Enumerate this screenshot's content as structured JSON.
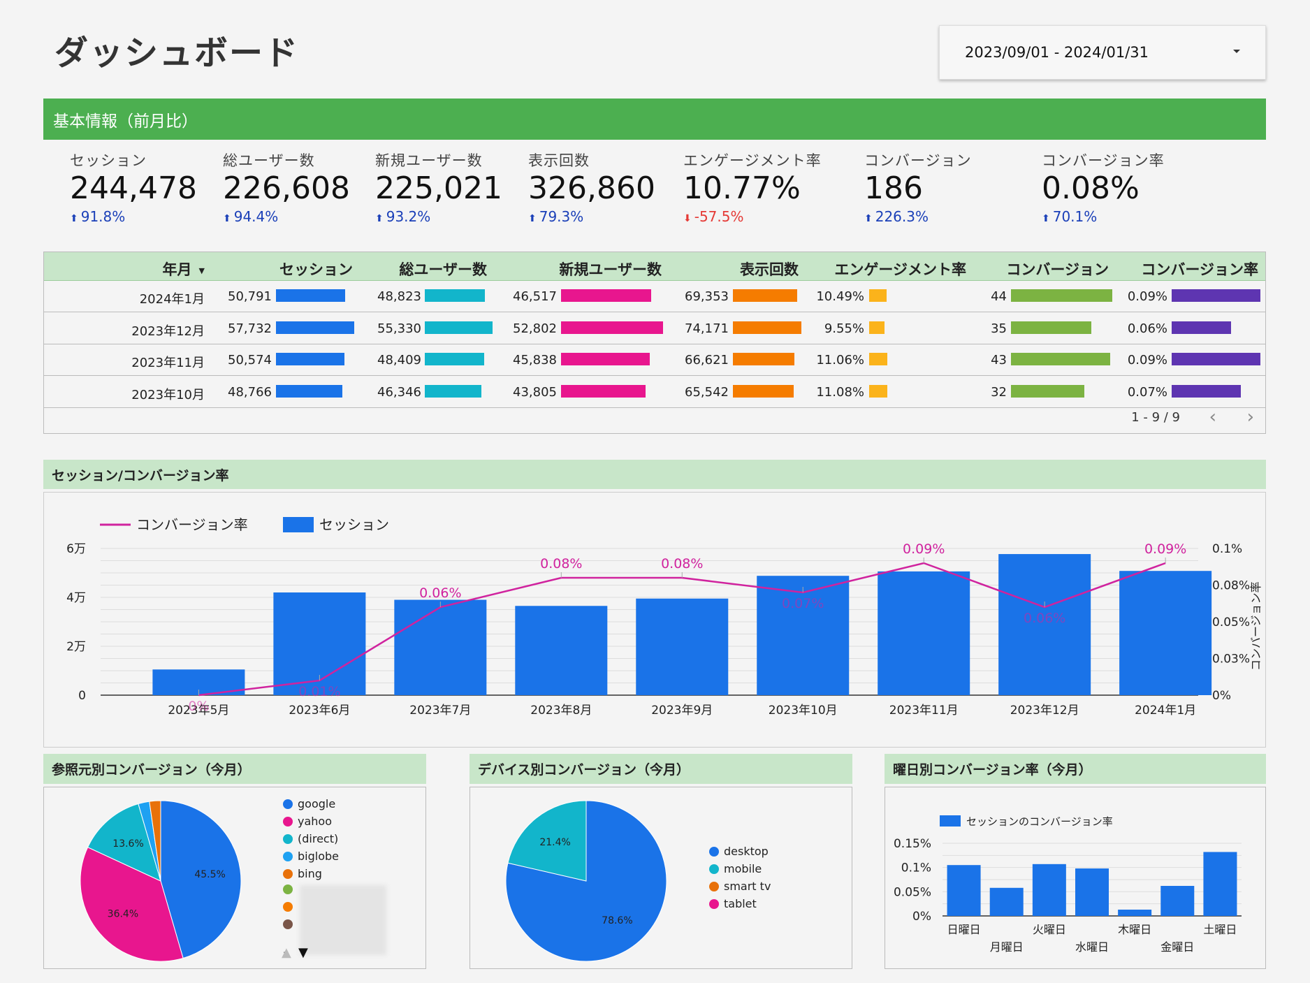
{
  "header": {
    "title": "ダッシュボード",
    "date_range": "2023/09/01 - 2024/01/31"
  },
  "basic_section": {
    "title": "基本情報（前月比）"
  },
  "kpis": [
    {
      "label": "セッション",
      "value": "244,478",
      "delta": "91.8%",
      "dir": "up"
    },
    {
      "label": "総ユーザー数",
      "value": "226,608",
      "delta": "94.4%",
      "dir": "up"
    },
    {
      "label": "新規ユーザー数",
      "value": "225,021",
      "delta": "93.2%",
      "dir": "up"
    },
    {
      "label": "表示回数",
      "value": "326,860",
      "delta": "79.3%",
      "dir": "up"
    },
    {
      "label": "エンゲージメント率",
      "value": "10.77%",
      "delta": "-57.5%",
      "dir": "down"
    },
    {
      "label": "コンバージョン",
      "value": "186",
      "delta": "226.3%",
      "dir": "up"
    },
    {
      "label": "コンバージョン率",
      "value": "0.08%",
      "delta": "70.1%",
      "dir": "up"
    }
  ],
  "table": {
    "headers": [
      "年月",
      "セッション",
      "総ユーザー数",
      "新規ユーザー数",
      "表示回数",
      "エンゲージメント率",
      "コンバージョン",
      "コンバージョン率"
    ],
    "colors": [
      "#1a73e8",
      "#12b5cb",
      "#e8168e",
      "#f57c00",
      "#fbb31b",
      "#7cb342",
      "#5e35b1"
    ],
    "rows": [
      {
        "month": "2024年1月",
        "cells": [
          "50,791",
          "48,823",
          "46,517",
          "69,353",
          "10.49%",
          "44",
          "0.09%"
        ],
        "nums": [
          50791,
          48823,
          46517,
          69353,
          10.49,
          44,
          0.09
        ]
      },
      {
        "month": "2023年12月",
        "cells": [
          "57,732",
          "55,330",
          "52,802",
          "74,171",
          "9.55%",
          "35",
          "0.06%"
        ],
        "nums": [
          57732,
          55330,
          52802,
          74171,
          9.55,
          35,
          0.06
        ]
      },
      {
        "month": "2023年11月",
        "cells": [
          "50,574",
          "48,409",
          "45,838",
          "66,621",
          "11.06%",
          "43",
          "0.09%"
        ],
        "nums": [
          50574,
          48409,
          45838,
          66621,
          11.06,
          43,
          0.09
        ]
      },
      {
        "month": "2023年10月",
        "cells": [
          "48,766",
          "46,346",
          "43,805",
          "65,542",
          "11.08%",
          "32",
          "0.07%"
        ],
        "nums": [
          48766,
          46346,
          43805,
          65542,
          11.08,
          32,
          0.07
        ]
      }
    ],
    "pager": "1 - 9 / 9"
  },
  "combo_section": {
    "title": "セッション/コンバージョン率"
  },
  "small_titles": {
    "referrer": "参照元別コンバージョン（今月）",
    "device": "デバイス別コンバージョン（今月）",
    "weekday": "曜日別コンバージョン率（今月）"
  },
  "chart_data": [
    {
      "type": "bar",
      "legend": [
        "コンバージョン率",
        "セッション"
      ],
      "categories": [
        "2023年5月",
        "2023年6月",
        "2023年7月",
        "2023年8月",
        "2023年9月",
        "2023年10月",
        "2023年11月",
        "2023年12月",
        "2024年1月"
      ],
      "series": [
        {
          "name": "セッション",
          "type": "bar",
          "axis": "left",
          "values": [
            10500,
            42000,
            39000,
            36500,
            39500,
            48800,
            50600,
            57700,
            50800
          ]
        },
        {
          "name": "コンバージョン率",
          "type": "line",
          "axis": "right",
          "values": [
            0,
            0.01,
            0.06,
            0.08,
            0.08,
            0.07,
            0.09,
            0.06,
            0.09
          ]
        }
      ],
      "data_labels": [
        "0%",
        "0.01%",
        "0.06%",
        "0.08%",
        "0.08%",
        "0.07%",
        "0.09%",
        "0.06%",
        "0.09%"
      ],
      "ylabel_right": "コンバージョン率",
      "y_ticks_left": [
        "0",
        "2万",
        "4万",
        "6万"
      ],
      "y_ticks_right": [
        "0%",
        "0.03%",
        "0.05%",
        "0.08%",
        "0.1%"
      ],
      "ylim_left": [
        0,
        60000
      ],
      "ylim_right": [
        0,
        0.1
      ],
      "grid": true,
      "legend_position": "top-left"
    },
    {
      "type": "pie",
      "name": "referrer",
      "slices": [
        {
          "label": "google",
          "value": 45.5,
          "color": "#1a73e8",
          "text": "45.5%"
        },
        {
          "label": "yahoo",
          "value": 36.4,
          "color": "#e8168e",
          "text": "36.4%"
        },
        {
          "label": "(direct)",
          "value": 13.6,
          "color": "#12b5cb",
          "text": "13.6%"
        },
        {
          "label": "biglobe",
          "value": 2.25,
          "color": "#1ea1f2",
          "text": ""
        },
        {
          "label": "bing",
          "value": 2.25,
          "color": "#e8710a",
          "text": ""
        }
      ],
      "extra_legend_colors": [
        "#7cb342",
        "#f57c00",
        "#795548"
      ]
    },
    {
      "type": "pie",
      "name": "device",
      "slices": [
        {
          "label": "desktop",
          "value": 78.6,
          "color": "#1a73e8",
          "text": "78.6%"
        },
        {
          "label": "mobile",
          "value": 21.4,
          "color": "#12b5cb",
          "text": "21.4%"
        },
        {
          "label": "smart tv",
          "value": 0,
          "color": "#e8710a",
          "text": ""
        },
        {
          "label": "tablet",
          "value": 0,
          "color": "#e8168e",
          "text": ""
        }
      ]
    },
    {
      "type": "bar",
      "name": "weekday",
      "legend": "セッションのコンバージョン率",
      "categories": [
        "日曜日",
        "月曜日",
        "火曜日",
        "水曜日",
        "木曜日",
        "金曜日",
        "土曜日"
      ],
      "values": [
        0.105,
        0.058,
        0.107,
        0.098,
        0.013,
        0.062,
        0.132
      ],
      "y_ticks": [
        "0%",
        "0.05%",
        "0.1%",
        "0.15%"
      ],
      "ylim": [
        0,
        0.15
      ]
    }
  ]
}
